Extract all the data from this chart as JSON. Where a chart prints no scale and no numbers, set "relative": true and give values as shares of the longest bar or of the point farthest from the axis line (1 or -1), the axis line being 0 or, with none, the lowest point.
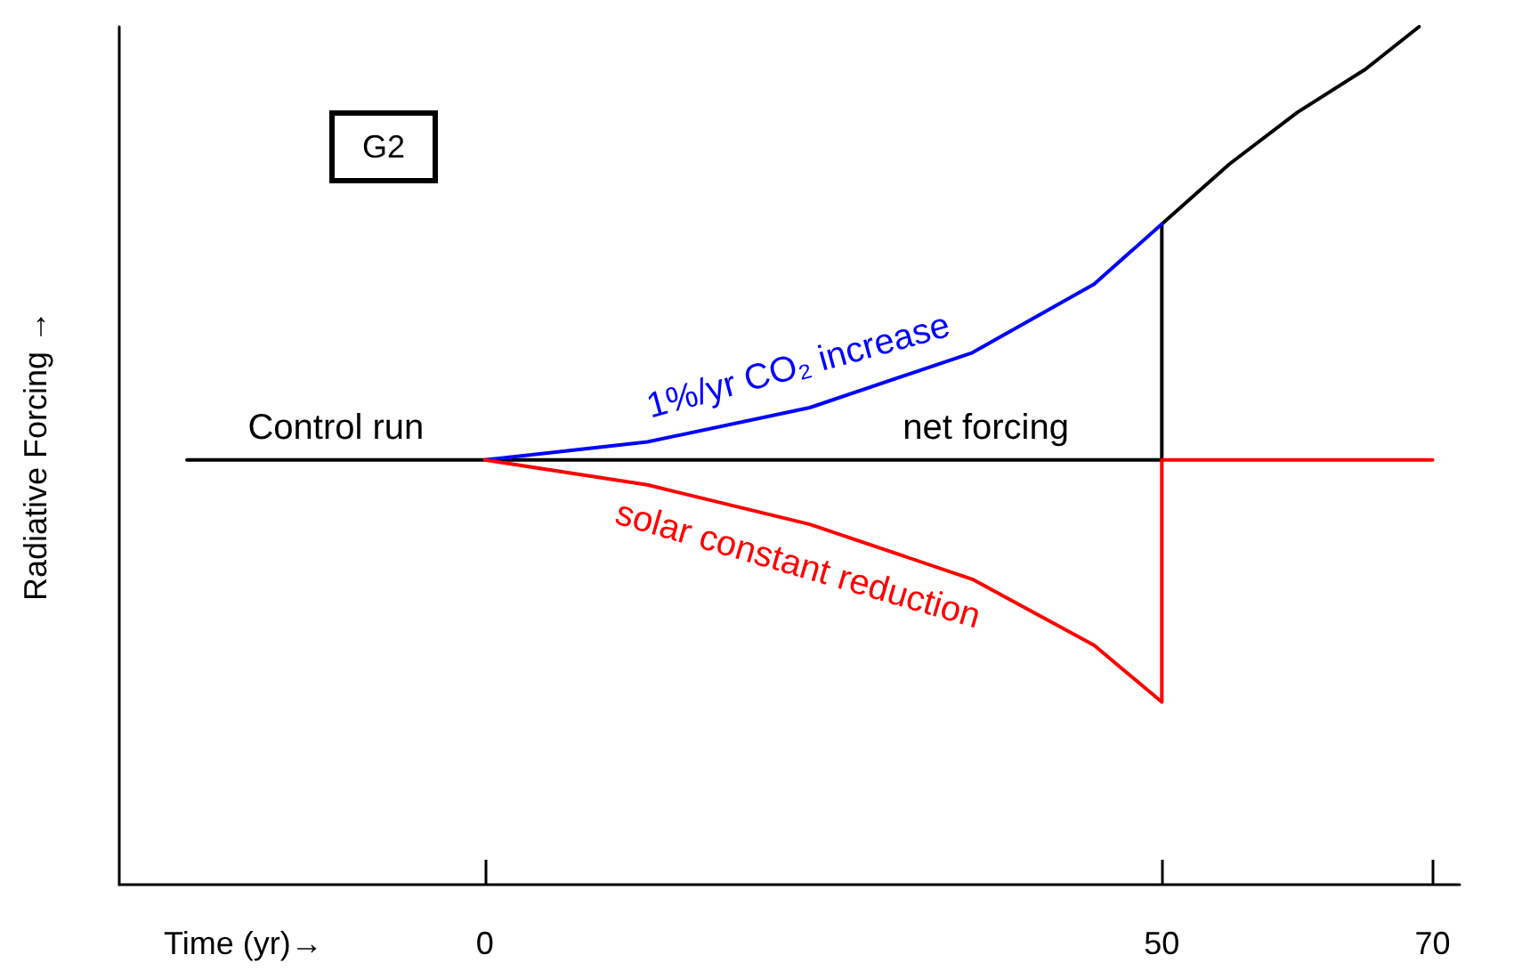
{
  "chart_data": {
    "type": "line",
    "relative": true,
    "xlabel": "Time (yr)→",
    "ylabel": "Radiative Forcing →",
    "xlim": [
      -27,
      72
    ],
    "xticks": [
      0,
      50,
      70
    ],
    "annotations": [
      "G2",
      {
        "text": "Control run",
        "x": -11,
        "y": 0.495
      },
      {
        "text": "net forcing",
        "x": 37,
        "y": 0.495
      }
    ],
    "series": [
      {
        "color": "#000000",
        "x": [
          -22,
          0,
          50,
          50,
          55,
          60,
          65,
          69
        ],
        "values": [
          0.495,
          0.495,
          0.495,
          0.77,
          0.84,
          0.9,
          0.95,
          1.0
        ]
      },
      {
        "name": "1%/yr CO₂ increase",
        "color": "#0000ff",
        "x": [
          0,
          12,
          24,
          36,
          45,
          50
        ],
        "values": [
          0.495,
          0.516,
          0.556,
          0.62,
          0.7,
          0.77
        ]
      },
      {
        "name": "solar constant reduction",
        "color": "#ff0000",
        "x": [
          0,
          12,
          24,
          36,
          45,
          50,
          50,
          70
        ],
        "values": [
          0.495,
          0.466,
          0.42,
          0.356,
          0.279,
          0.213,
          0.495,
          0.495
        ]
      }
    ]
  }
}
